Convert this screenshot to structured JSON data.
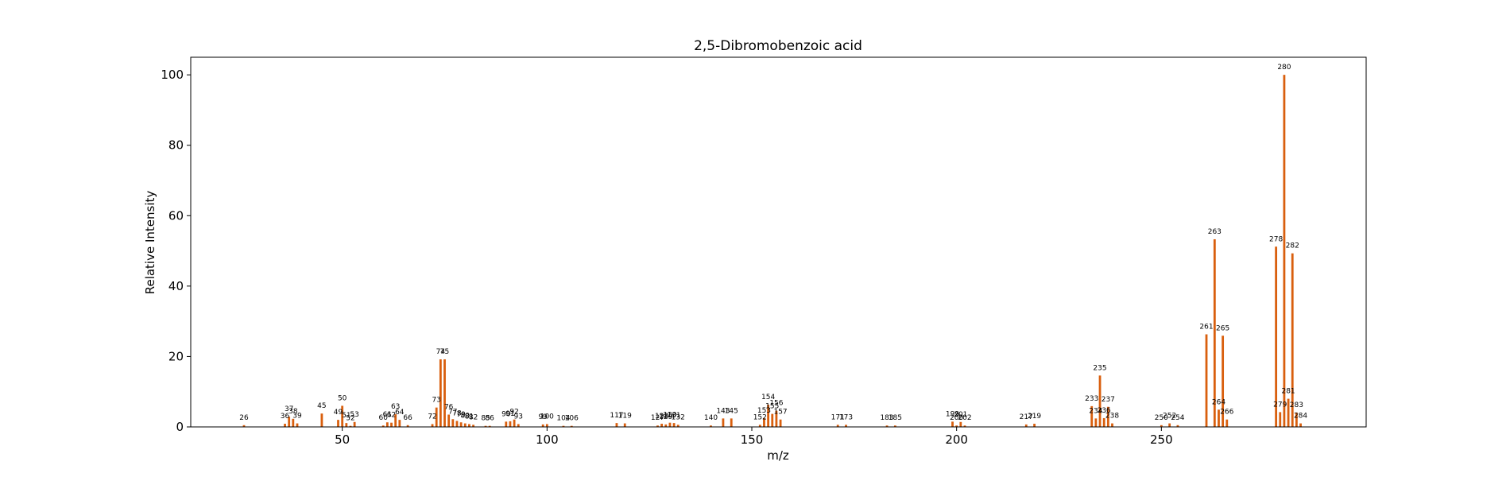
{
  "chart_data": {
    "type": "bar",
    "title": "2,5-Dibromobenzoic acid",
    "xlabel": "m/z",
    "ylabel": "Relative Intensity",
    "xlim": [
      13,
      300
    ],
    "ylim": [
      0,
      105
    ],
    "xticks": [
      50,
      100,
      150,
      200,
      250
    ],
    "yticks": [
      0,
      20,
      40,
      60,
      80,
      100
    ],
    "bar_color": "#d95f0e",
    "grid": false,
    "legend": "none",
    "peaks": [
      {
        "mz": 26,
        "intensity": 0.5
      },
      {
        "mz": 36,
        "intensity": 0.9
      },
      {
        "mz": 37,
        "intensity": 2.9
      },
      {
        "mz": 38,
        "intensity": 2.3
      },
      {
        "mz": 39,
        "intensity": 1.0
      },
      {
        "mz": 45,
        "intensity": 3.8
      },
      {
        "mz": 49,
        "intensity": 2.0
      },
      {
        "mz": 50,
        "intensity": 6.0
      },
      {
        "mz": 51,
        "intensity": 1.1
      },
      {
        "mz": 52,
        "intensity": 0.3
      },
      {
        "mz": 53,
        "intensity": 1.4
      },
      {
        "mz": 60,
        "intensity": 0.4
      },
      {
        "mz": 61,
        "intensity": 1.3
      },
      {
        "mz": 62,
        "intensity": 1.2
      },
      {
        "mz": 63,
        "intensity": 3.6
      },
      {
        "mz": 64,
        "intensity": 2.0
      },
      {
        "mz": 66,
        "intensity": 0.5
      },
      {
        "mz": 72,
        "intensity": 0.8
      },
      {
        "mz": 73,
        "intensity": 5.5
      },
      {
        "mz": 74,
        "intensity": 19.2
      },
      {
        "mz": 75,
        "intensity": 19.2
      },
      {
        "mz": 76,
        "intensity": 3.5
      },
      {
        "mz": 77,
        "intensity": 2.2
      },
      {
        "mz": 78,
        "intensity": 1.7
      },
      {
        "mz": 79,
        "intensity": 1.3
      },
      {
        "mz": 80,
        "intensity": 1.0
      },
      {
        "mz": 81,
        "intensity": 0.8
      },
      {
        "mz": 82,
        "intensity": 0.6
      },
      {
        "mz": 85,
        "intensity": 0.3
      },
      {
        "mz": 86,
        "intensity": 0.3
      },
      {
        "mz": 90,
        "intensity": 1.5
      },
      {
        "mz": 91,
        "intensity": 1.6
      },
      {
        "mz": 92,
        "intensity": 2.1
      },
      {
        "mz": 93,
        "intensity": 0.8
      },
      {
        "mz": 99,
        "intensity": 0.7
      },
      {
        "mz": 100,
        "intensity": 0.8
      },
      {
        "mz": 104,
        "intensity": 0.3
      },
      {
        "mz": 106,
        "intensity": 0.3
      },
      {
        "mz": 117,
        "intensity": 1.1
      },
      {
        "mz": 119,
        "intensity": 1.0
      },
      {
        "mz": 127,
        "intensity": 0.4
      },
      {
        "mz": 128,
        "intensity": 0.9
      },
      {
        "mz": 129,
        "intensity": 0.7
      },
      {
        "mz": 130,
        "intensity": 1.2
      },
      {
        "mz": 131,
        "intensity": 1.1
      },
      {
        "mz": 132,
        "intensity": 0.6
      },
      {
        "mz": 140,
        "intensity": 0.4
      },
      {
        "mz": 143,
        "intensity": 2.4
      },
      {
        "mz": 145,
        "intensity": 2.4
      },
      {
        "mz": 152,
        "intensity": 0.6
      },
      {
        "mz": 153,
        "intensity": 2.5
      },
      {
        "mz": 154,
        "intensity": 6.3
      },
      {
        "mz": 155,
        "intensity": 3.7
      },
      {
        "mz": 156,
        "intensity": 4.6
      },
      {
        "mz": 157,
        "intensity": 2.1
      },
      {
        "mz": 171,
        "intensity": 0.6
      },
      {
        "mz": 173,
        "intensity": 0.6
      },
      {
        "mz": 183,
        "intensity": 0.4
      },
      {
        "mz": 185,
        "intensity": 0.4
      },
      {
        "mz": 199,
        "intensity": 1.5
      },
      {
        "mz": 200,
        "intensity": 0.4
      },
      {
        "mz": 201,
        "intensity": 1.4
      },
      {
        "mz": 202,
        "intensity": 0.4
      },
      {
        "mz": 217,
        "intensity": 0.7
      },
      {
        "mz": 219,
        "intensity": 0.9
      },
      {
        "mz": 233,
        "intensity": 5.9
      },
      {
        "mz": 234,
        "intensity": 2.4
      },
      {
        "mz": 235,
        "intensity": 14.6
      },
      {
        "mz": 236,
        "intensity": 2.5
      },
      {
        "mz": 237,
        "intensity": 5.7
      },
      {
        "mz": 238,
        "intensity": 1.0
      },
      {
        "mz": 250,
        "intensity": 0.5
      },
      {
        "mz": 252,
        "intensity": 1.0
      },
      {
        "mz": 254,
        "intensity": 0.5
      },
      {
        "mz": 261,
        "intensity": 26.3
      },
      {
        "mz": 263,
        "intensity": 53.3
      },
      {
        "mz": 264,
        "intensity": 4.9
      },
      {
        "mz": 265,
        "intensity": 25.9
      },
      {
        "mz": 266,
        "intensity": 2.1
      },
      {
        "mz": 278,
        "intensity": 51.2
      },
      {
        "mz": 279,
        "intensity": 4.2
      },
      {
        "mz": 280,
        "intensity": 100.0
      },
      {
        "mz": 281,
        "intensity": 8.0
      },
      {
        "mz": 282,
        "intensity": 49.3
      },
      {
        "mz": 283,
        "intensity": 4.1
      },
      {
        "mz": 284,
        "intensity": 1.0
      }
    ]
  }
}
